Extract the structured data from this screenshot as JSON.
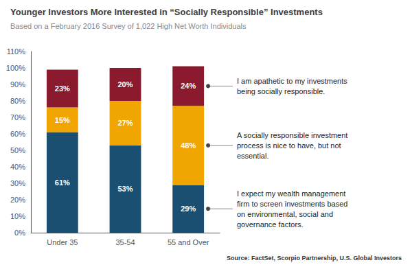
{
  "chart_data": {
    "type": "bar",
    "title": "Younger Investors More Interested in “Socially Responsible” Investments",
    "subtitle": "Based on a February 2016 Survey of 1,022 High Net Worth Individuals",
    "source": "Source: FactSet, Scorpio Partnership, U.S. Global Investors",
    "categories": [
      "Under 35",
      "35-54",
      "55 and Over"
    ],
    "stacked": true,
    "data_labels": true,
    "grid": false,
    "series": [
      {
        "color": "#1b4f72",
        "values": [
          61,
          53,
          29
        ],
        "value_labels": [
          "61%",
          "53%",
          "29%"
        ]
      },
      {
        "color": "#f0a500",
        "values": [
          15,
          27,
          48
        ],
        "value_labels": [
          "15%",
          "27%",
          "48%"
        ]
      },
      {
        "color": "#8b1a2e",
        "values": [
          23,
          20,
          24
        ],
        "value_labels": [
          "23%",
          "20%",
          "24%"
        ]
      }
    ],
    "ylim": [
      0,
      110
    ],
    "yticks": [
      {
        "value": 0,
        "label": "0%"
      },
      {
        "value": 10,
        "label": "10%"
      },
      {
        "value": 20,
        "label": "20%"
      },
      {
        "value": 30,
        "label": "30%"
      },
      {
        "value": 40,
        "label": "40%"
      },
      {
        "value": 50,
        "label": "50%"
      },
      {
        "value": 60,
        "label": "60%"
      },
      {
        "value": 70,
        "label": "70%"
      },
      {
        "value": 80,
        "label": "80%"
      },
      {
        "value": 90,
        "label": "90%"
      },
      {
        "value": 100,
        "label": "100%"
      },
      {
        "value": 110,
        "label": "110%"
      }
    ],
    "annotations": [
      "I am apathetic to my investments\nbeing socially responsible.",
      "A socially responsible investment\nprocess is nice to have, but not\nessential.",
      "I expect my wealth management\nfirm to screen investments based\non environmental, social and\ngovernance factors."
    ]
  }
}
